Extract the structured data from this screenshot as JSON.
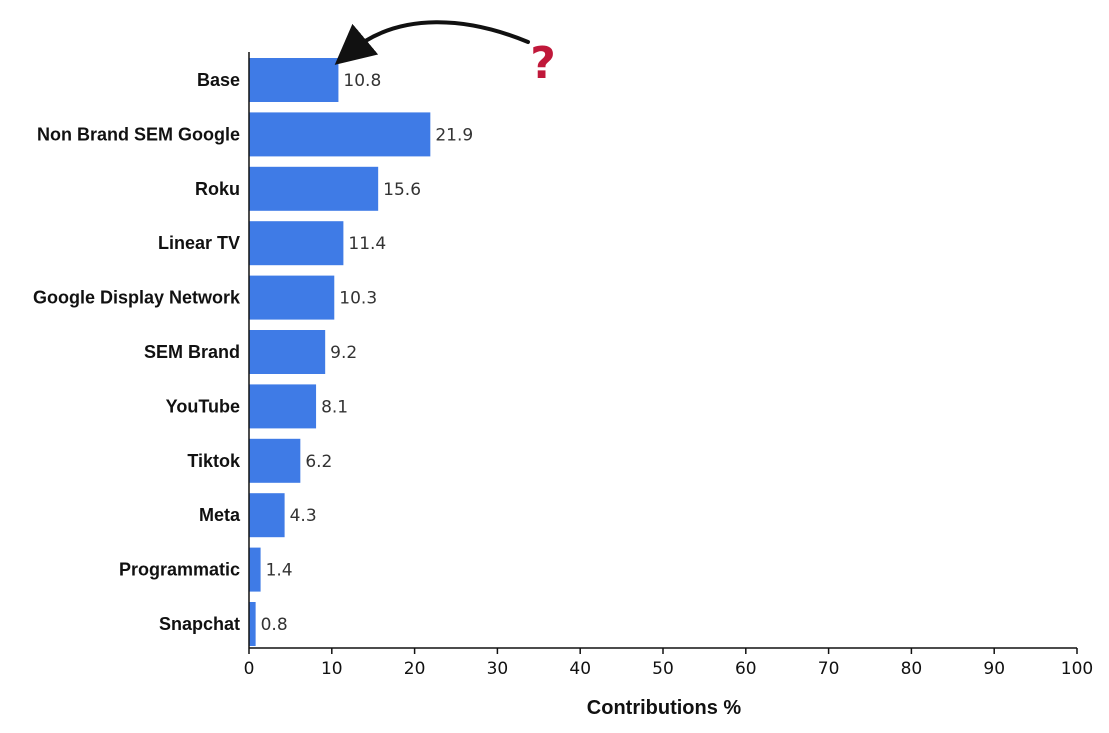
{
  "chart_data": {
    "type": "bar",
    "orientation": "horizontal",
    "categories": [
      "Base",
      "Non Brand SEM Google",
      "Roku",
      "Linear TV",
      "Google Display Network",
      "SEM Brand",
      "YouTube",
      "Tiktok",
      "Meta",
      "Programmatic",
      "Snapchat"
    ],
    "values": [
      10.8,
      21.9,
      15.6,
      11.4,
      10.3,
      9.2,
      8.1,
      6.2,
      4.3,
      1.4,
      0.8
    ],
    "value_labels": [
      "10.8",
      "21.9",
      "15.6",
      "11.4",
      "10.3",
      "9.2",
      "8.1",
      "6.2",
      "4.3",
      "1.4",
      "0.8"
    ],
    "xlabel": "Contributions %",
    "ylabel": "",
    "xlim": [
      0,
      100
    ],
    "xticks": [
      0,
      10,
      20,
      30,
      40,
      50,
      60,
      70,
      80,
      90,
      100
    ],
    "grid": false,
    "bar_color": "#3f7be6",
    "annotation": {
      "text": "?",
      "color": "#c0183a",
      "points_to": "Base"
    }
  }
}
